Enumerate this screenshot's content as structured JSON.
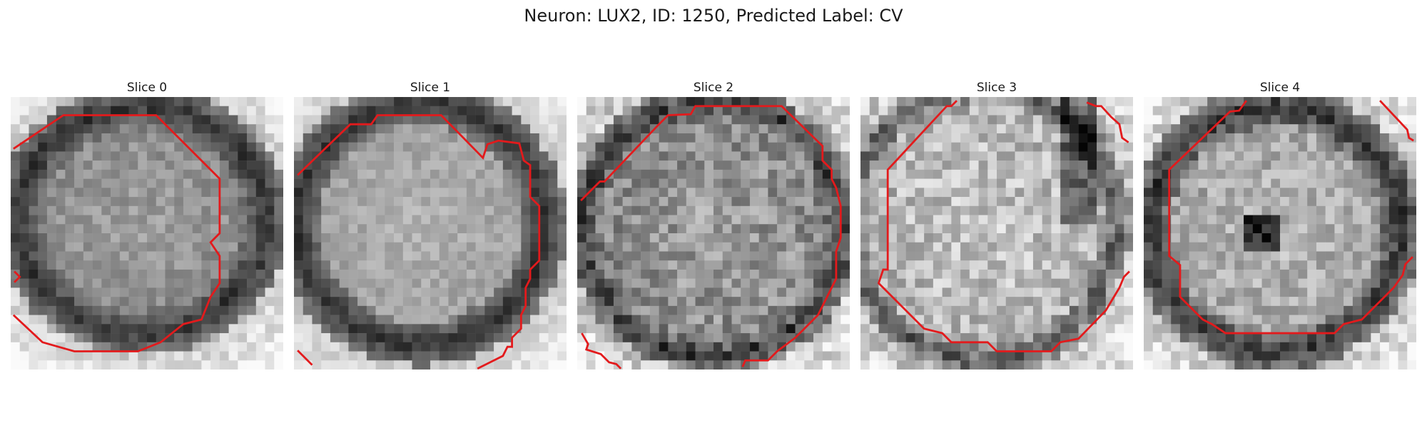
{
  "figure": {
    "title": "Neuron: LUX2, ID: 1250, Predicted Label: CV"
  },
  "colors": {
    "contour": "#e31a1c",
    "background": "#ffffff"
  },
  "slices": [
    {
      "title": "Slice 0"
    },
    {
      "title": "Slice 1"
    },
    {
      "title": "Slice 2"
    },
    {
      "title": "Slice 3"
    },
    {
      "title": "Slice 4"
    }
  ]
}
